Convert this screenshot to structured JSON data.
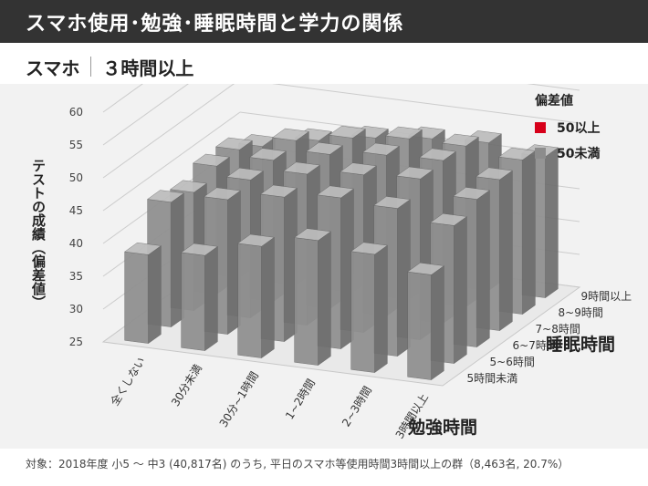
{
  "header": {
    "title": "スマホ使用･勉強･睡眠時間と学力の関係"
  },
  "subtitle": {
    "group": "スマホ",
    "value": "３時間以上"
  },
  "colors": {
    "above50": "#d7001a",
    "below50": "#8c8c8c",
    "titlebar": "#333333"
  },
  "footnote": "対象：2018年度 小5 ～ 中3 (40,817名) のうち, 平日のスマホ等使用時間3時間以上の群（8,463名, 20.7%）",
  "chart_data": {
    "type": "bar3d",
    "title": "スマホ｜３時間以上",
    "ylabel": "テストの成績（偏差値）",
    "xlabel": "勉強時間",
    "zlabel": "睡眠時間",
    "ylim": [
      25,
      60
    ],
    "yticks": [
      25,
      30,
      35,
      40,
      45,
      50,
      55,
      60
    ],
    "x_categories": [
      "全くしない",
      "30分未満",
      "30分~1時間",
      "1~2時間",
      "2~3時間",
      "3時間以上"
    ],
    "z_categories": [
      "5時間未満",
      "5~6時間",
      "6~7時間",
      "7~8時間",
      "8~9時間",
      "9時間以上"
    ],
    "legend": {
      "title": "偏差値",
      "items": [
        "50以上",
        "50未満"
      ]
    },
    "values": [
      [
        38.5,
        39.5,
        42.0,
        44.0,
        43.0,
        41.0
      ],
      [
        44.0,
        45.5,
        47.0,
        48.0,
        47.5,
        46.0
      ],
      [
        43.0,
        46.0,
        48.0,
        49.0,
        49.5,
        47.5
      ],
      [
        44.5,
        46.5,
        48.5,
        49.5,
        49.8,
        48.0
      ],
      [
        44.5,
        47.0,
        48.5,
        49.5,
        49.5,
        48.5
      ],
      [
        42.5,
        44.5,
        46.0,
        47.0,
        47.5,
        46.5
      ]
    ]
  }
}
